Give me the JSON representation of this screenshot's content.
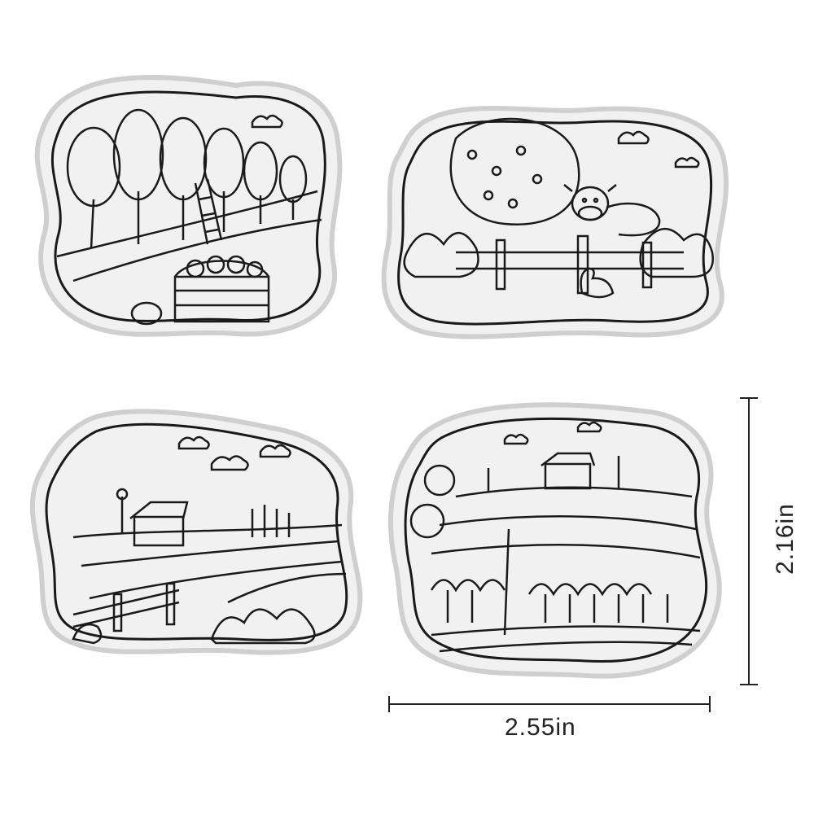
{
  "image": {
    "subject": "clear-stamps",
    "stamp_count": 4,
    "stamps": [
      {
        "name": "orchard-scene"
      },
      {
        "name": "cow-pasture-scene"
      },
      {
        "name": "farmhouse-fields-scene"
      },
      {
        "name": "vineyard-scene"
      }
    ]
  },
  "dimensions": {
    "width_label": "2.55in",
    "height_label": "2.16in"
  },
  "colors": {
    "line": "#1a1a1a",
    "stamp_fill": "#f1f1f1",
    "stamp_edge": "#cfcfcf",
    "background": "#ffffff"
  }
}
